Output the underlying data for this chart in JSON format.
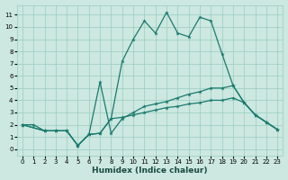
{
  "xlabel": "Humidex (Indice chaleur)",
  "bg_color": "#cce8e0",
  "grid_color": "#99ccc0",
  "line_color": "#1a7a6e",
  "xlim": [
    -0.5,
    23.5
  ],
  "ylim": [
    -0.5,
    11.8
  ],
  "xticks": [
    0,
    1,
    2,
    3,
    4,
    5,
    6,
    7,
    8,
    9,
    10,
    11,
    12,
    13,
    14,
    15,
    16,
    17,
    18,
    19,
    20,
    21,
    22,
    23
  ],
  "yticks": [
    0,
    1,
    2,
    3,
    4,
    5,
    6,
    7,
    8,
    9,
    10,
    11
  ],
  "line1_x": [
    0,
    1,
    2,
    3,
    4,
    5,
    6,
    7,
    8,
    9,
    10,
    11,
    12,
    13,
    14,
    15,
    16,
    17,
    18,
    19,
    20,
    21,
    22,
    23
  ],
  "line1_y": [
    2,
    2,
    1.5,
    1.5,
    1.5,
    0.3,
    1.2,
    1.3,
    2.5,
    7.2,
    9.0,
    10.5,
    9.5,
    11.2,
    9.5,
    9.2,
    10.8,
    10.5,
    7.8,
    5.2,
    3.8,
    2.8,
    2.2,
    1.6
  ],
  "line2_x": [
    0,
    2,
    3,
    4,
    5,
    6,
    7,
    8,
    9,
    10,
    11,
    12,
    13,
    14,
    15,
    16,
    17,
    18,
    19,
    20,
    21,
    22,
    23
  ],
  "line2_y": [
    2,
    1.5,
    1.5,
    1.5,
    0.3,
    1.2,
    5.5,
    1.3,
    2.5,
    3.0,
    3.5,
    3.7,
    3.9,
    4.2,
    4.5,
    4.7,
    5.0,
    5.0,
    5.2,
    3.8,
    2.8,
    2.2,
    1.6
  ],
  "line3_x": [
    0,
    2,
    3,
    4,
    5,
    6,
    7,
    8,
    9,
    10,
    11,
    12,
    13,
    14,
    15,
    16,
    17,
    18,
    19,
    20,
    21,
    22,
    23
  ],
  "line3_y": [
    2,
    1.5,
    1.5,
    1.5,
    0.3,
    1.2,
    1.3,
    2.5,
    2.6,
    2.8,
    3.0,
    3.2,
    3.4,
    3.5,
    3.7,
    3.8,
    4.0,
    4.0,
    4.2,
    3.8,
    2.8,
    2.2,
    1.6
  ]
}
